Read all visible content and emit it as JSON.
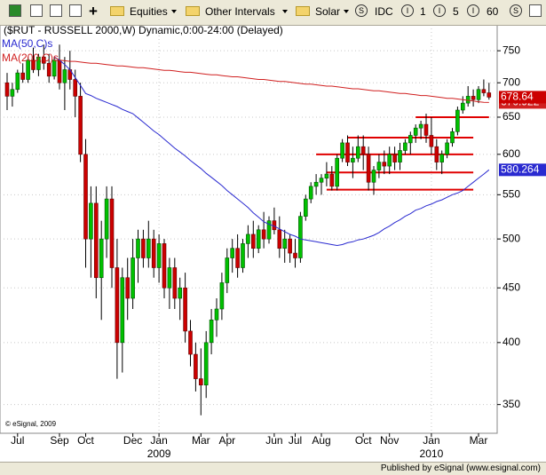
{
  "toolbar": {
    "items": [
      "Equities",
      "Other Intervals",
      "Solar",
      "IDC",
      "1",
      "5",
      "60"
    ]
  },
  "footer": "Published by eSignal (www.esignal.com)",
  "chart_data": {
    "type": "candlestick",
    "title": "($RUT - RUSSELL 2000,W) Dynamic,0:00-24:00 (Delayed)",
    "copyright": "© eSignal, 2009",
    "categories": [
      null,
      null,
      "Jul",
      null,
      null,
      null,
      null,
      null,
      null,
      null,
      "Sep",
      null,
      null,
      null,
      null,
      "Oct",
      null,
      null,
      null,
      null,
      null,
      null,
      null,
      null,
      "Dec",
      null,
      null,
      null,
      null,
      "Jan",
      null,
      null,
      null,
      null,
      null,
      null,
      null,
      "Mar",
      null,
      null,
      null,
      null,
      "Apr",
      null,
      null,
      null,
      null,
      null,
      null,
      null,
      null,
      "Jun",
      null,
      null,
      null,
      "Jul",
      null,
      null,
      null,
      null,
      "Aug",
      null,
      null,
      null,
      null,
      null,
      null,
      null,
      "Oct",
      null,
      null,
      null,
      null,
      "Nov",
      null,
      null,
      null,
      null,
      null,
      null,
      null,
      "Jan",
      null,
      null,
      null,
      null,
      null,
      null,
      null,
      null,
      "Mar",
      null,
      null
    ],
    "year_labels": [
      {
        "category": 29,
        "label": "2009"
      },
      {
        "category": 81,
        "label": "2010"
      }
    ],
    "open": [
      700,
      680,
      690,
      715,
      705,
      735,
      720,
      740,
      730,
      710,
      735,
      700,
      720,
      705,
      680,
      600,
      500,
      540,
      460,
      500,
      545,
      470,
      400,
      460,
      440,
      480,
      500,
      480,
      500,
      470,
      495,
      450,
      470,
      440,
      450,
      410,
      390,
      370,
      365,
      400,
      420,
      430,
      455,
      480,
      490,
      470,
      495,
      505,
      490,
      510,
      500,
      520,
      510,
      490,
      500,
      485,
      480,
      525,
      545,
      560,
      565,
      570,
      575,
      560,
      595,
      615,
      590,
      595,
      610,
      600,
      565,
      580,
      590,
      585,
      600,
      590,
      605,
      615,
      625,
      635,
      640,
      625,
      610,
      590,
      600,
      615,
      630,
      660,
      670,
      680,
      675,
      690,
      685
    ],
    "high": [
      715,
      700,
      720,
      730,
      740,
      755,
      745,
      760,
      745,
      740,
      760,
      740,
      750,
      720,
      700,
      620,
      560,
      560,
      520,
      560,
      560,
      500,
      470,
      480,
      500,
      510,
      510,
      520,
      510,
      505,
      500,
      480,
      480,
      460,
      465,
      420,
      400,
      395,
      410,
      430,
      440,
      465,
      490,
      500,
      505,
      500,
      515,
      520,
      515,
      530,
      525,
      535,
      525,
      510,
      505,
      500,
      530,
      550,
      565,
      575,
      575,
      590,
      585,
      600,
      620,
      625,
      610,
      625,
      625,
      610,
      585,
      600,
      605,
      610,
      610,
      615,
      620,
      630,
      640,
      645,
      655,
      650,
      620,
      605,
      620,
      635,
      665,
      680,
      695,
      690,
      695,
      705,
      700
    ],
    "low": [
      660,
      665,
      685,
      700,
      700,
      715,
      710,
      720,
      700,
      705,
      690,
      660,
      690,
      650,
      590,
      470,
      460,
      440,
      420,
      480,
      450,
      370,
      375,
      420,
      430,
      455,
      470,
      470,
      460,
      455,
      440,
      430,
      430,
      420,
      400,
      380,
      360,
      342,
      355,
      390,
      405,
      420,
      445,
      465,
      460,
      465,
      480,
      480,
      485,
      490,
      495,
      505,
      480,
      475,
      475,
      470,
      475,
      520,
      540,
      550,
      550,
      560,
      555,
      555,
      590,
      585,
      570,
      590,
      580,
      555,
      550,
      570,
      575,
      575,
      580,
      580,
      600,
      600,
      615,
      620,
      615,
      600,
      580,
      575,
      595,
      610,
      625,
      655,
      665,
      665,
      670,
      680,
      675
    ],
    "close": [
      680,
      690,
      715,
      705,
      735,
      720,
      740,
      730,
      710,
      735,
      700,
      720,
      705,
      680,
      600,
      500,
      540,
      460,
      500,
      545,
      470,
      400,
      460,
      440,
      480,
      500,
      480,
      500,
      470,
      495,
      450,
      470,
      440,
      450,
      410,
      390,
      370,
      365,
      400,
      420,
      430,
      455,
      480,
      490,
      470,
      495,
      505,
      490,
      510,
      500,
      520,
      510,
      490,
      500,
      485,
      480,
      525,
      545,
      560,
      565,
      570,
      575,
      560,
      595,
      615,
      590,
      595,
      610,
      600,
      565,
      580,
      590,
      585,
      600,
      590,
      605,
      615,
      625,
      635,
      640,
      625,
      610,
      590,
      600,
      615,
      630,
      660,
      670,
      680,
      675,
      690,
      685,
      678.64
    ],
    "up_color": "#00c000",
    "down_color": "#cc0000",
    "overlays": [
      {
        "name": "MA(50,C)s",
        "color": "#2a2ad0",
        "values": [
          null,
          null,
          null,
          null,
          null,
          null,
          null,
          null,
          null,
          740,
          735,
          728,
          720,
          708,
          696,
          684,
          681,
          677,
          674,
          671,
          668,
          665,
          661,
          658,
          655,
          649,
          643,
          637,
          631,
          626,
          620,
          614,
          608,
          603,
          598,
          592,
          587,
          582,
          576,
          571,
          566,
          561,
          555,
          550,
          545,
          540,
          535,
          529,
          524,
          519,
          516,
          514,
          511,
          508,
          505,
          503,
          500,
          499,
          498,
          497,
          496,
          495,
          494,
          493,
          494,
          496,
          497,
          499,
          500,
          502,
          504,
          507,
          511,
          514,
          518,
          521,
          525,
          528,
          532,
          534,
          537,
          539,
          542,
          544,
          547,
          550,
          552,
          555,
          560,
          565,
          570,
          575,
          580.264
        ]
      },
      {
        "name": "MA(200,C)s",
        "color": "#d02020",
        "values": [
          null,
          null,
          null,
          null,
          null,
          null,
          null,
          null,
          null,
          null,
          735,
          734,
          733,
          733,
          732,
          731,
          730,
          730,
          729,
          728,
          727,
          726,
          726,
          725,
          724,
          723,
          723,
          722,
          721,
          720,
          719,
          719,
          718,
          717,
          716,
          716,
          715,
          714,
          713,
          712,
          712,
          711,
          710,
          709,
          709,
          708,
          707,
          706,
          705,
          705,
          704,
          703,
          702,
          702,
          701,
          700,
          699,
          698,
          698,
          697,
          696,
          695,
          695,
          694,
          693,
          692,
          691,
          691,
          690,
          689,
          688,
          688,
          687,
          686,
          685,
          684,
          684,
          683,
          682,
          681,
          681,
          680,
          679,
          678,
          677,
          677,
          676,
          675,
          674,
          673,
          672,
          671,
          670.922
        ]
      }
    ],
    "drawn_lines": [
      {
        "value": 650,
        "from": 78,
        "to": 92
      },
      {
        "value": 622,
        "from": 65,
        "to": 89
      },
      {
        "value": 600,
        "from": 59,
        "to": 89
      },
      {
        "value": 577,
        "from": 61,
        "to": 89
      },
      {
        "value": 556,
        "from": 61,
        "to": 89
      }
    ],
    "drawn_line_color": "#e00000",
    "ylim": [
      329,
      793
    ],
    "yticks": [
      350,
      400,
      450,
      500,
      550,
      600,
      650,
      700,
      750
    ],
    "log_scale": true,
    "grid": true
  }
}
